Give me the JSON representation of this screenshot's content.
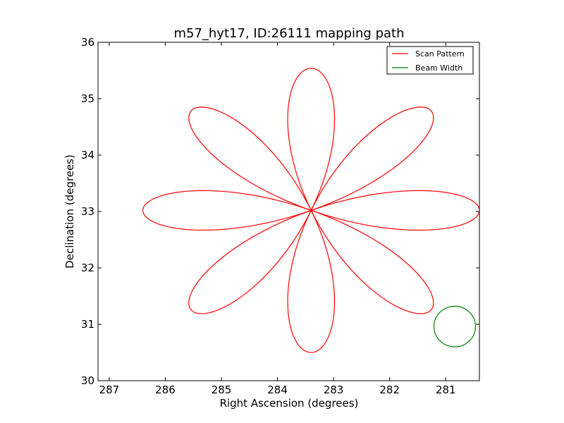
{
  "chart_data": {
    "type": "line",
    "title": "m57_hyt17, ID:26111 mapping path",
    "xlabel": "Right Ascension (degrees)",
    "ylabel": "Declination (degrees)",
    "xlim": [
      287.2,
      280.4
    ],
    "ylim": [
      30,
      36
    ],
    "x_inverted": true,
    "xticks": [
      287,
      286,
      285,
      284,
      283,
      282,
      281
    ],
    "yticks": [
      30,
      31,
      32,
      33,
      34,
      35,
      36
    ],
    "grid": false,
    "legend_position": "top-right",
    "series": [
      {
        "name": "Scan Pattern",
        "color": "#ff0000",
        "pattern": "rose",
        "petals": 8,
        "center": [
          283.4,
          33.02
        ],
        "radius_ra": 3.0,
        "radius_dec": 2.52,
        "petal_angles_deg": [
          0,
          45,
          90,
          135,
          180,
          225,
          270,
          315
        ]
      },
      {
        "name": "Beam Width",
        "color": "#008000",
        "pattern": "circle",
        "center": [
          280.84,
          30.96
        ],
        "radius_ra": 0.37,
        "radius_dec": 0.36
      }
    ]
  }
}
